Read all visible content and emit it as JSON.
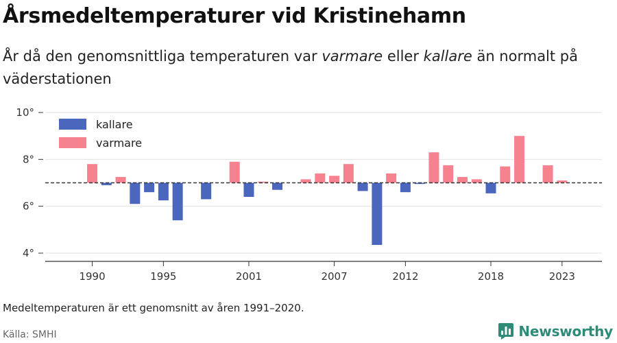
{
  "header": {
    "title": "Årsmedeltemperaturer vid Kristinehamn",
    "subtitle_pre": "År då den genomsnittliga temperaturen var ",
    "subtitle_warm": "varmare",
    "subtitle_mid": " eller ",
    "subtitle_cold": "kallare",
    "subtitle_post": " än normalt på väderstationen"
  },
  "footer": {
    "note": "Medeltemperaturen är ett genomsnitt av åren 1991–2020.",
    "source": "Källa: SMHI",
    "brand": "Newsworthy"
  },
  "colors": {
    "warmer": "#f7828f",
    "colder": "#4a66bd",
    "baseline": "#333333",
    "grid": "#e2e2e2",
    "brand": "#2e8b78"
  },
  "chart_data": {
    "type": "bar",
    "baseline": 7.0,
    "ylim": [
      4,
      10
    ],
    "yticks": [
      4,
      6,
      8,
      10
    ],
    "ytick_labels": [
      "4°",
      "6°",
      "8°",
      "10°"
    ],
    "xticks": [
      1990,
      1995,
      2001,
      2007,
      2012,
      2018,
      2023
    ],
    "xtick_labels": [
      "1990",
      "1995",
      "2001",
      "2007",
      "2012",
      "2018",
      "2023"
    ],
    "grid": true,
    "legend_position": "top-left",
    "legend": [
      {
        "key": "colder",
        "label": "kallare"
      },
      {
        "key": "warmer",
        "label": "varmare"
      }
    ],
    "bars": [
      {
        "year": 1990,
        "value": 7.8
      },
      {
        "year": 1991,
        "value": 6.9
      },
      {
        "year": 1992,
        "value": 7.25
      },
      {
        "year": 1993,
        "value": 6.1
      },
      {
        "year": 1994,
        "value": 6.6
      },
      {
        "year": 1995,
        "value": 6.25
      },
      {
        "year": 1996,
        "value": 5.4
      },
      {
        "year": 1998,
        "value": 6.3
      },
      {
        "year": 2000,
        "value": 7.9
      },
      {
        "year": 2001,
        "value": 6.4
      },
      {
        "year": 2002,
        "value": 7.05
      },
      {
        "year": 2003,
        "value": 6.7
      },
      {
        "year": 2005,
        "value": 7.15
      },
      {
        "year": 2006,
        "value": 7.4
      },
      {
        "year": 2007,
        "value": 7.3
      },
      {
        "year": 2008,
        "value": 7.8
      },
      {
        "year": 2009,
        "value": 6.65
      },
      {
        "year": 2010,
        "value": 4.35
      },
      {
        "year": 2011,
        "value": 7.4
      },
      {
        "year": 2012,
        "value": 6.6
      },
      {
        "year": 2013,
        "value": 6.95
      },
      {
        "year": 2014,
        "value": 8.3
      },
      {
        "year": 2015,
        "value": 7.75
      },
      {
        "year": 2016,
        "value": 7.25
      },
      {
        "year": 2017,
        "value": 7.15
      },
      {
        "year": 2018,
        "value": 6.55
      },
      {
        "year": 2019,
        "value": 7.7
      },
      {
        "year": 2020,
        "value": 9.0
      },
      {
        "year": 2022,
        "value": 7.75
      },
      {
        "year": 2023,
        "value": 7.1
      }
    ]
  }
}
